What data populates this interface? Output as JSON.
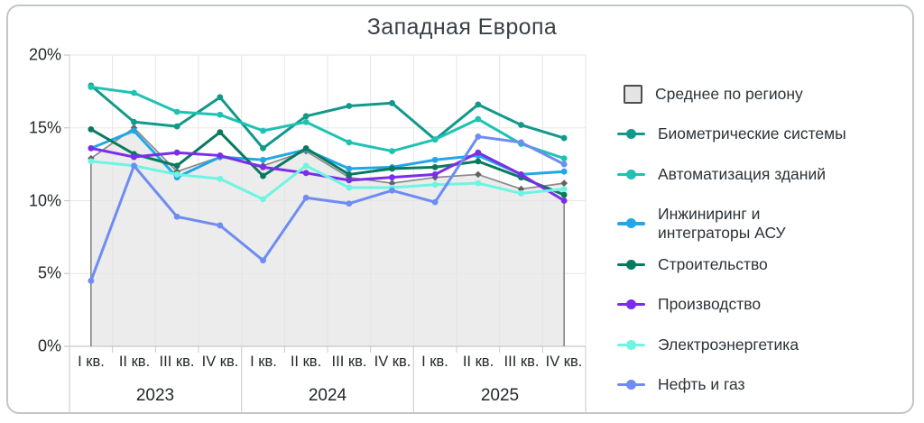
{
  "title": "Западная Европа",
  "y_axis": {
    "labels": [
      "20%",
      "15%",
      "10%",
      "5%",
      "0%"
    ]
  },
  "x_axis": {
    "quarters": [
      "I кв.",
      "II кв.",
      "III кв.",
      "IV кв."
    ],
    "years": [
      "2023",
      "2024",
      "2025"
    ]
  },
  "legend": [
    {
      "label": "Среднее по региону",
      "color": "#8a8a8a",
      "swatch": "square"
    },
    {
      "label": "Биометрические системы",
      "color": "#12998a",
      "swatch": "line"
    },
    {
      "label": "Автоматизация зданий",
      "color": "#1fc2b2",
      "swatch": "line"
    },
    {
      "label": "Инжиниринг и интеграторы АСУ",
      "color": "#21a7e8",
      "swatch": "line"
    },
    {
      "label": "Строительство",
      "color": "#087a5e",
      "swatch": "line"
    },
    {
      "label": "Производство",
      "color": "#7c2de9",
      "swatch": "line"
    },
    {
      "label": "Электроэнергетика",
      "color": "#6df5e2",
      "swatch": "line"
    },
    {
      "label": "Нефть и газ",
      "color": "#6e8cf2",
      "swatch": "line"
    }
  ],
  "chart_data": {
    "type": "line",
    "title": "Западная Европа",
    "ylim": [
      0,
      20
    ],
    "y_tick_step": 5,
    "y_unit": "%",
    "grid": true,
    "legend_position": "right",
    "x": [
      "I кв. 2023",
      "II кв. 2023",
      "III кв. 2023",
      "IV кв. 2023",
      "I кв. 2024",
      "II кв. 2024",
      "III кв. 2024",
      "IV кв. 2024",
      "I кв. 2025",
      "II кв. 2025",
      "III кв. 2025",
      "IV кв. 2025"
    ],
    "series": [
      {
        "name": "Среднее по региону",
        "type": "area",
        "color": "#8a8a8a",
        "fill": "#ececec",
        "marker": "diamond",
        "values": [
          12.9,
          15.0,
          12.0,
          13.0,
          12.4,
          13.4,
          11.6,
          11.2,
          11.6,
          11.8,
          10.8,
          11.2
        ]
      },
      {
        "name": "Биометрические системы",
        "type": "line",
        "color": "#12998a",
        "marker": "circle",
        "values": [
          17.9,
          15.4,
          15.1,
          17.1,
          13.6,
          15.8,
          16.5,
          16.7,
          14.2,
          16.6,
          15.2,
          14.3
        ]
      },
      {
        "name": "Автоматизация зданий",
        "type": "line",
        "color": "#1fc2b2",
        "marker": "circle",
        "values": [
          17.8,
          17.4,
          16.1,
          15.9,
          14.8,
          15.4,
          14.0,
          13.4,
          14.2,
          15.6,
          13.9,
          12.9
        ]
      },
      {
        "name": "Инжиниринг и интеграторы АСУ",
        "type": "line",
        "color": "#21a7e8",
        "marker": "circle",
        "values": [
          13.6,
          14.8,
          11.6,
          13.0,
          12.8,
          13.5,
          12.2,
          12.3,
          12.8,
          13.1,
          11.8,
          12.0
        ]
      },
      {
        "name": "Строительство",
        "type": "line",
        "color": "#087a5e",
        "marker": "circle",
        "values": [
          14.9,
          13.2,
          12.4,
          14.7,
          11.7,
          13.6,
          11.8,
          12.2,
          12.3,
          12.7,
          11.6,
          10.4
        ]
      },
      {
        "name": "Производство",
        "type": "line",
        "color": "#7c2de9",
        "marker": "circle",
        "values": [
          13.6,
          13.0,
          13.3,
          13.1,
          12.3,
          11.9,
          11.4,
          11.6,
          11.8,
          13.3,
          11.8,
          10.0
        ]
      },
      {
        "name": "Электроэнергетика",
        "type": "line",
        "color": "#6df5e2",
        "marker": "circle",
        "values": [
          12.7,
          12.4,
          11.8,
          11.5,
          10.1,
          12.4,
          10.9,
          10.9,
          11.1,
          11.2,
          10.5,
          10.8
        ]
      },
      {
        "name": "Нефть и газ",
        "type": "line",
        "color": "#6e8cf2",
        "marker": "circle",
        "values": [
          4.5,
          12.4,
          8.9,
          8.3,
          5.9,
          10.2,
          9.8,
          10.7,
          9.9,
          14.4,
          14.0,
          12.5
        ]
      }
    ]
  }
}
